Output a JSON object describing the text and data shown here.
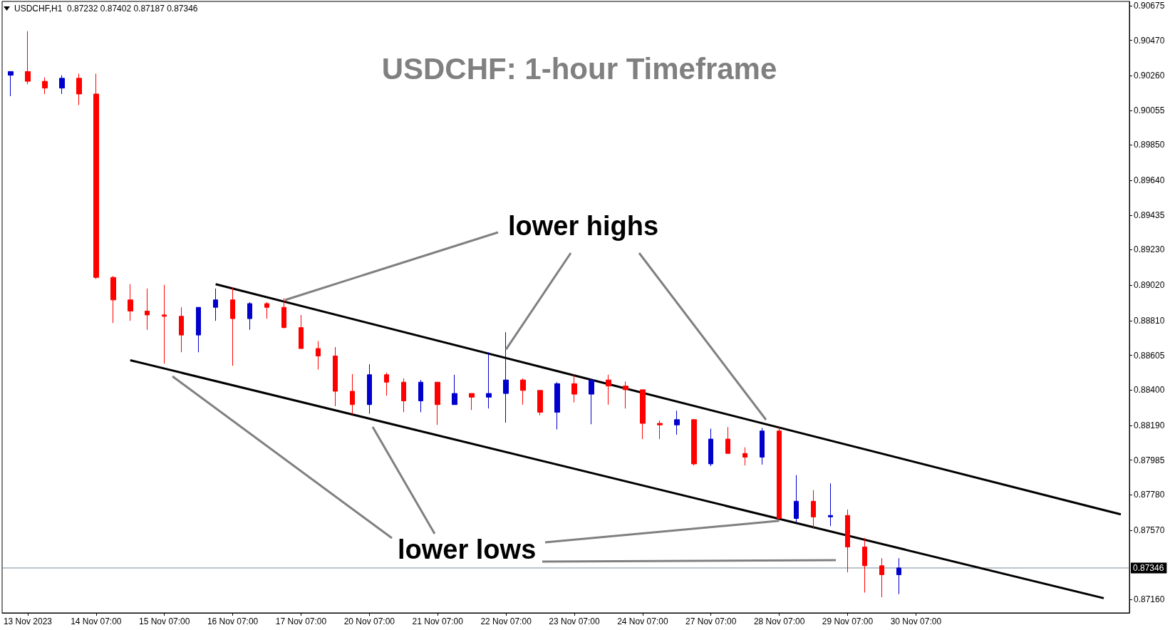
{
  "chart_data": {
    "type": "candlestick",
    "title": "USDCHF: 1-hour Timeframe",
    "annotations": [
      "USDCHF,H1  0.87232 0.87402 0.87187 0.87346",
      {
        "text": "lower highs",
        "x": "22 Nov 07:00",
        "y": 0.8864
      },
      {
        "text": "lower lows",
        "x": "28 Nov 07:00",
        "y": 0.87625
      }
    ],
    "grid": false,
    "categories": [
      null,
      "13 Nov 2023",
      null,
      null,
      null,
      "14 Nov 07:00",
      null,
      null,
      null,
      "15 Nov 07:00",
      null,
      null,
      null,
      "16 Nov 07:00",
      null,
      null,
      null,
      "17 Nov 07:00",
      null,
      null,
      null,
      "20 Nov 07:00",
      null,
      null,
      null,
      "21 Nov 07:00",
      null,
      null,
      null,
      "22 Nov 07:00",
      null,
      null,
      null,
      "23 Nov 07:00",
      null,
      null,
      null,
      "24 Nov 07:00",
      null,
      null,
      null,
      "27 Nov 07:00",
      null,
      null,
      null,
      "28 Nov 07:00",
      null,
      null,
      null,
      "29 Nov 07:00",
      null,
      null,
      null,
      "30 Nov 07:00",
      null,
      null,
      null,
      null,
      null,
      null,
      null,
      null,
      null,
      null,
      null,
      null
    ],
    "ylim": [
      0.8708,
      0.907
    ],
    "yticks": [
      {
        "value": 0.8716,
        "label": "0.87160"
      },
      {
        "value": 0.8757,
        "label": "0.87570"
      },
      {
        "value": 0.8778,
        "label": "0.87780"
      },
      0.87985,
      {
        "value": 0.8819,
        "label": "0.88190"
      },
      {
        "value": 0.884,
        "label": "0.88400"
      },
      0.88605,
      {
        "value": 0.8881,
        "label": "0.88810"
      },
      {
        "value": 0.8902,
        "label": "0.89020"
      },
      {
        "value": 0.8923,
        "label": "0.89230"
      },
      0.89435,
      {
        "value": 0.8964,
        "label": "0.89640"
      },
      {
        "value": 0.8985,
        "label": "0.89850"
      },
      0.90055,
      {
        "value": 0.9026,
        "label": "0.90260"
      },
      {
        "value": 0.9047,
        "label": "0.90470"
      },
      0.90675
    ],
    "ref_lines": [
      {
        "axis": "y",
        "value": 0.87346,
        "label": "0.87346",
        "color": "#778899"
      }
    ],
    "series": [
      {
        "color": "#0000cd",
        "ohlc": [
          [
            0.90263,
            0.90285,
            0.90139,
            0.90285
          ],
          null,
          null,
          [
            0.90187,
            0.90263,
            0.90152,
            0.90245
          ],
          null,
          null,
          null,
          null,
          null,
          null,
          null,
          [
            0.88725,
            0.88889,
            0.88623,
            0.88889
          ],
          [
            0.88889,
            0.89,
            0.88809,
            0.88933
          ],
          null,
          [
            0.88822,
            0.8892,
            0.88756,
            0.88911
          ],
          null,
          null,
          null,
          null,
          null,
          null,
          [
            0.88313,
            0.88552,
            0.88259,
            0.8849
          ],
          null,
          null,
          [
            0.88335,
            0.88459,
            0.88268,
            0.88446
          ],
          null,
          [
            0.88313,
            0.8849,
            0.88313,
            0.88379
          ],
          null,
          [
            0.88357,
            0.88623,
            0.8829,
            0.88379
          ],
          [
            0.88379,
            0.88742,
            0.88206,
            0.88459
          ],
          null,
          null,
          [
            0.88268,
            0.88446,
            0.88166,
            0.88437
          ],
          null,
          [
            0.88375,
            0.88459,
            0.88197,
            0.88459
          ],
          null,
          null,
          null,
          null,
          [
            0.88193,
            0.88277,
            0.88135,
            0.88224
          ],
          null,
          [
            0.87962,
            0.88171,
            0.87949,
            0.88109
          ],
          null,
          null,
          [
            0.88002,
            0.88175,
            0.87958,
            0.88157
          ],
          null,
          [
            0.87639,
            0.87896,
            0.87617,
            0.87741
          ],
          null,
          [
            0.87648,
            0.87847,
            0.87594,
            0.87657
          ],
          null,
          null,
          null,
          [
            0.87306,
            0.87404,
            0.87191,
            0.87346
          ],
          null,
          null,
          null,
          null,
          null,
          null,
          null,
          null,
          null,
          null,
          null,
          null,
          null
        ]
      },
      {
        "color": "#ff0000",
        "ohlc": [
          null,
          [
            0.90285,
            0.90524,
            0.9021,
            0.90227
          ],
          [
            0.90227,
            0.9025,
            0.90152,
            0.90187
          ],
          null,
          [
            0.90245,
            0.90272,
            0.90086,
            0.90152
          ],
          [
            0.90152,
            0.90272,
            0.89057,
            0.89066
          ],
          [
            0.89066,
            0.89075,
            0.88796,
            0.88933
          ],
          [
            0.88933,
            0.89026,
            0.88809,
            0.88867
          ],
          [
            0.88867,
            0.89,
            0.88756,
            0.88844
          ],
          [
            0.88844,
            0.89022,
            0.88556,
            0.88836
          ],
          [
            0.88836,
            0.88889,
            0.88623,
            0.88725
          ],
          null,
          null,
          [
            0.88933,
            0.89008,
            0.88543,
            0.88822
          ],
          null,
          [
            0.88911,
            0.8892,
            0.88822,
            0.88889
          ],
          [
            0.88889,
            0.88942,
            0.88765,
            0.88769
          ],
          [
            0.88769,
            0.88844,
            0.88645,
            0.88645
          ],
          [
            0.88645,
            0.88689,
            0.88521,
            0.88601
          ],
          [
            0.88601,
            0.88654,
            0.88304,
            0.88392
          ],
          [
            0.88392,
            0.88494,
            0.88255,
            0.88313
          ],
          null,
          [
            0.8849,
            0.88503,
            0.88366,
            0.88446
          ],
          [
            0.88446,
            0.88468,
            0.88268,
            0.88335
          ],
          null,
          [
            0.88446,
            0.88446,
            0.88193,
            0.88313
          ],
          null,
          [
            0.88379,
            0.88379,
            0.88281,
            0.88357
          ],
          null,
          null,
          [
            0.88459,
            0.88468,
            0.88313,
            0.88397
          ],
          [
            0.88397,
            0.88397,
            0.8825,
            0.88268
          ],
          null,
          [
            0.88437,
            0.8849,
            0.88326,
            0.88375
          ],
          null,
          [
            0.88459,
            0.8849,
            0.88313,
            0.88423
          ],
          [
            0.88423,
            0.8845,
            0.8829,
            0.88401
          ],
          [
            0.88401,
            0.88401,
            0.88109,
            0.88202
          ],
          [
            0.88202,
            0.88219,
            0.88109,
            0.88193
          ],
          null,
          [
            0.88224,
            0.88228,
            0.87953,
            0.87962
          ],
          null,
          [
            0.88109,
            0.8818,
            0.88024,
            0.88024
          ],
          [
            0.88024,
            0.8806,
            0.87953,
            0.88002
          ],
          null,
          [
            0.88157,
            0.88184,
            0.8763,
            0.87639
          ],
          null,
          [
            0.87741,
            0.87807,
            0.87577,
            0.87648
          ],
          null,
          [
            0.87657,
            0.87692,
            0.8732,
            0.8747
          ],
          [
            0.8747,
            0.87524,
            0.872,
            0.87359
          ],
          [
            0.87359,
            0.87404,
            0.87173,
            0.87306
          ],
          null,
          null,
          null,
          null,
          null,
          null,
          null,
          null,
          null,
          null,
          null,
          null,
          null,
          null
        ]
      },
      {
        "type": "line",
        "color": "#000000",
        "values": [
          null,
          null,
          null,
          null,
          null,
          null,
          null,
          null,
          null,
          null,
          null,
          null,
          0.89026,
          null,
          null,
          null,
          null,
          null,
          null,
          null,
          null,
          null,
          null,
          null,
          null,
          null,
          null,
          null,
          null,
          null,
          null,
          null,
          null,
          null,
          null,
          null,
          null,
          null,
          null,
          null,
          null,
          null,
          null,
          null,
          null,
          null,
          null,
          null,
          null,
          null,
          null,
          null,
          null,
          null,
          null,
          null,
          null,
          null,
          null,
          null,
          null,
          null,
          null,
          null,
          null,
          0.87663
        ]
      },
      {
        "type": "line",
        "color": "#000000",
        "values": [
          null,
          null,
          null,
          null,
          null,
          null,
          null,
          0.88576,
          null,
          null,
          null,
          null,
          null,
          null,
          null,
          null,
          null,
          null,
          null,
          null,
          null,
          null,
          null,
          null,
          null,
          null,
          null,
          null,
          null,
          null,
          null,
          null,
          null,
          null,
          null,
          null,
          null,
          null,
          null,
          null,
          null,
          null,
          null,
          null,
          null,
          null,
          null,
          null,
          null,
          null,
          null,
          null,
          null,
          null,
          null,
          null,
          null,
          null,
          null,
          null,
          null,
          null,
          null,
          null,
          0.87167,
          null
        ]
      }
    ]
  }
}
